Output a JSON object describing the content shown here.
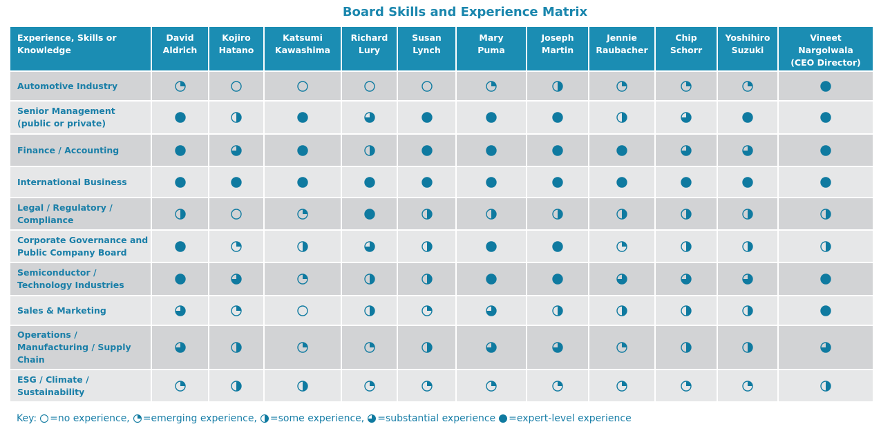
{
  "title": "Board Skills and Experience Matrix",
  "table": {
    "corner": "Experience, Skills or\nKnowledge",
    "columns": [
      "David\nAldrich",
      "Kojiro\nHatano",
      "Katsumi\nKawashima",
      "Richard\nLury",
      "Susan\nLynch",
      "Mary\nPuma",
      "Joseph\nMartin",
      "Jennie\nRaubacher",
      "Chip\nSchorr",
      "Yoshihiro\nSuzuki",
      "Vineet\nNargolwala\n(CEO Director)"
    ],
    "rows": [
      {
        "label": "Automotive Industry",
        "levels": [
          1,
          0,
          0,
          0,
          0,
          1,
          2,
          1,
          1,
          1,
          4
        ]
      },
      {
        "label": "Senior Management\n(public or private)",
        "levels": [
          4,
          2,
          4,
          3,
          4,
          4,
          4,
          2,
          3,
          4,
          4
        ]
      },
      {
        "label": "Finance / Accounting",
        "levels": [
          4,
          3,
          4,
          2,
          4,
          4,
          4,
          4,
          3,
          3,
          4
        ]
      },
      {
        "label": "International Business",
        "levels": [
          4,
          4,
          4,
          4,
          4,
          4,
          4,
          4,
          4,
          4,
          4
        ]
      },
      {
        "label": "Legal / Regulatory /\nCompliance",
        "levels": [
          2,
          0,
          1,
          4,
          2,
          2,
          2,
          2,
          2,
          2,
          2
        ]
      },
      {
        "label": "Corporate Governance and\nPublic Company Board",
        "levels": [
          4,
          1,
          2,
          3,
          2,
          4,
          4,
          1,
          2,
          2,
          2
        ]
      },
      {
        "label": "Semiconductor /\nTechnology Industries",
        "levels": [
          4,
          3,
          1,
          2,
          2,
          4,
          4,
          3,
          3,
          3,
          4
        ]
      },
      {
        "label": "Sales & Marketing",
        "levels": [
          3,
          1,
          0,
          2,
          1,
          3,
          2,
          2,
          2,
          2,
          4
        ]
      },
      {
        "label": "Operations /\nManufacturing / Supply\nChain",
        "levels": [
          3,
          2,
          1,
          1,
          2,
          3,
          3,
          1,
          2,
          2,
          3
        ]
      },
      {
        "label": "ESG / Climate /\nSustainability",
        "levels": [
          1,
          2,
          2,
          1,
          1,
          1,
          1,
          1,
          1,
          1,
          2
        ]
      }
    ]
  },
  "key": {
    "prefix": "Key:",
    "items": [
      {
        "level": 0,
        "label": "=no experience,"
      },
      {
        "level": 1,
        "label": "=emerging experience,"
      },
      {
        "level": 2,
        "label": "=some experience,"
      },
      {
        "level": 3,
        "label": "=substantial experience"
      },
      {
        "level": 4,
        "label": "=expert-level experience"
      }
    ]
  }
}
